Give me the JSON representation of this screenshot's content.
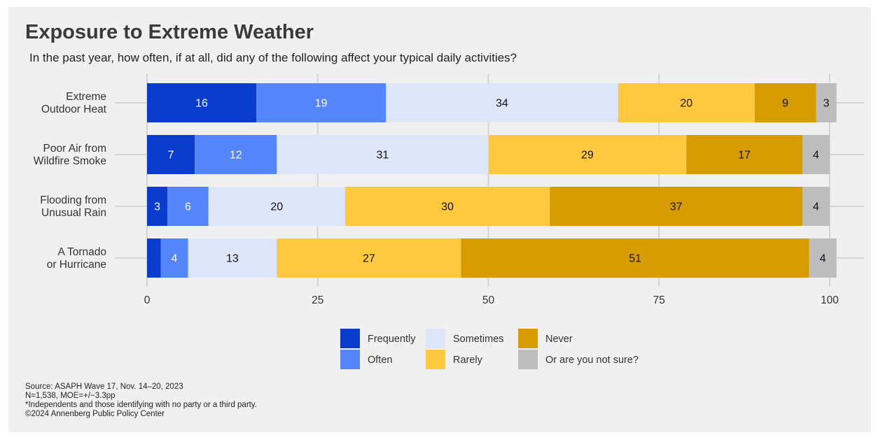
{
  "chart_data": {
    "type": "bar",
    "orientation": "horizontal",
    "stacked": true,
    "title": "Exposure to Extreme Weather",
    "subtitle": "In the past year, how often, if at all, did any of the following affect your typical daily activities?",
    "categories": [
      "Extreme\nOutdoor Heat",
      "Poor Air from\nWildfire Smoke",
      "Flooding from\nUnusual Rain",
      "A Tornado\nor Hurricane"
    ],
    "series": [
      {
        "name": "Frequently",
        "color": "#0a3cce",
        "values": [
          16,
          7,
          3,
          2
        ],
        "labels": [
          "16",
          "7",
          "3",
          ""
        ]
      },
      {
        "name": "Often",
        "color": "#5585fa",
        "values": [
          19,
          12,
          6,
          4
        ],
        "labels": [
          "19",
          "12",
          "6",
          "4"
        ]
      },
      {
        "name": "Sometimes",
        "color": "#dee6fa",
        "values": [
          34,
          31,
          20,
          13
        ],
        "labels": [
          "34",
          "31",
          "20",
          "13"
        ]
      },
      {
        "name": "Rarely",
        "color": "#fec93f",
        "values": [
          20,
          29,
          30,
          27
        ],
        "labels": [
          "20",
          "29",
          "30",
          "27"
        ]
      },
      {
        "name": "Never",
        "color": "#d79d00",
        "values": [
          9,
          17,
          37,
          51
        ],
        "labels": [
          "9",
          "17",
          "37",
          "51"
        ]
      },
      {
        "name": "Or are you not sure?",
        "color": "#bdbdbd",
        "values": [
          3,
          4,
          4,
          4
        ],
        "labels": [
          "3",
          "4",
          "4",
          "4"
        ]
      }
    ],
    "xlim": [
      0,
      100
    ],
    "xticks": [
      0,
      25,
      50,
      75,
      100
    ],
    "xtick_labels": [
      "0",
      "25",
      "50",
      "75",
      "100"
    ],
    "grid": true,
    "legend_position": "bottom"
  },
  "footnotes": [
    "Source: ASAPH Wave 17, Nov. 14–20, 2023",
    "N=1,538, MOE=+/−3.3pp",
    "*Independents and those identifying with no party or a third party.",
    "©2024 Annenberg Public Policy Center"
  ]
}
